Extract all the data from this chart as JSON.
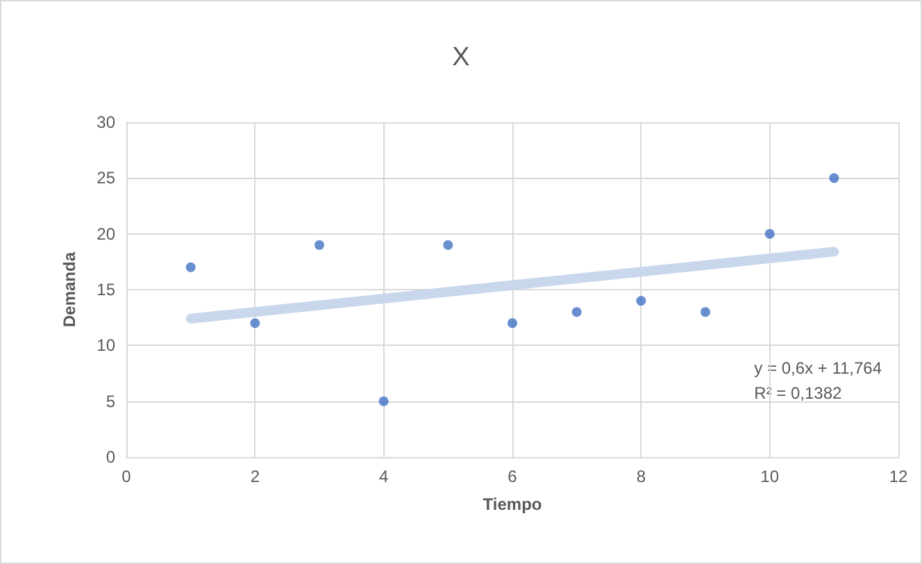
{
  "chart_data": {
    "type": "scatter",
    "title": "X",
    "xlabel": "Tiempo",
    "ylabel": "Demanda",
    "xlim": [
      0,
      12
    ],
    "xticks": [
      0,
      2,
      4,
      6,
      8,
      10,
      12
    ],
    "ylim": [
      0,
      30
    ],
    "yticks": [
      0,
      5,
      10,
      15,
      20,
      25,
      30
    ],
    "grid": true,
    "series": [
      {
        "color": "#4472c4",
        "marker": "circle",
        "x": [
          1,
          2,
          3,
          4,
          5,
          6,
          7,
          8,
          9,
          10,
          11
        ],
        "values": [
          17,
          12,
          19,
          5,
          19,
          12,
          13,
          14,
          13,
          20,
          25
        ]
      },
      {
        "type": "line",
        "color": "#c9d7ec",
        "x": [
          1,
          11
        ],
        "values": [
          12.4,
          18.4
        ],
        "marker": "none",
        "line_style": "solid"
      }
    ],
    "annotations": [
      "y = 0,6x + 11,764",
      "R² = 0,1382"
    ]
  }
}
